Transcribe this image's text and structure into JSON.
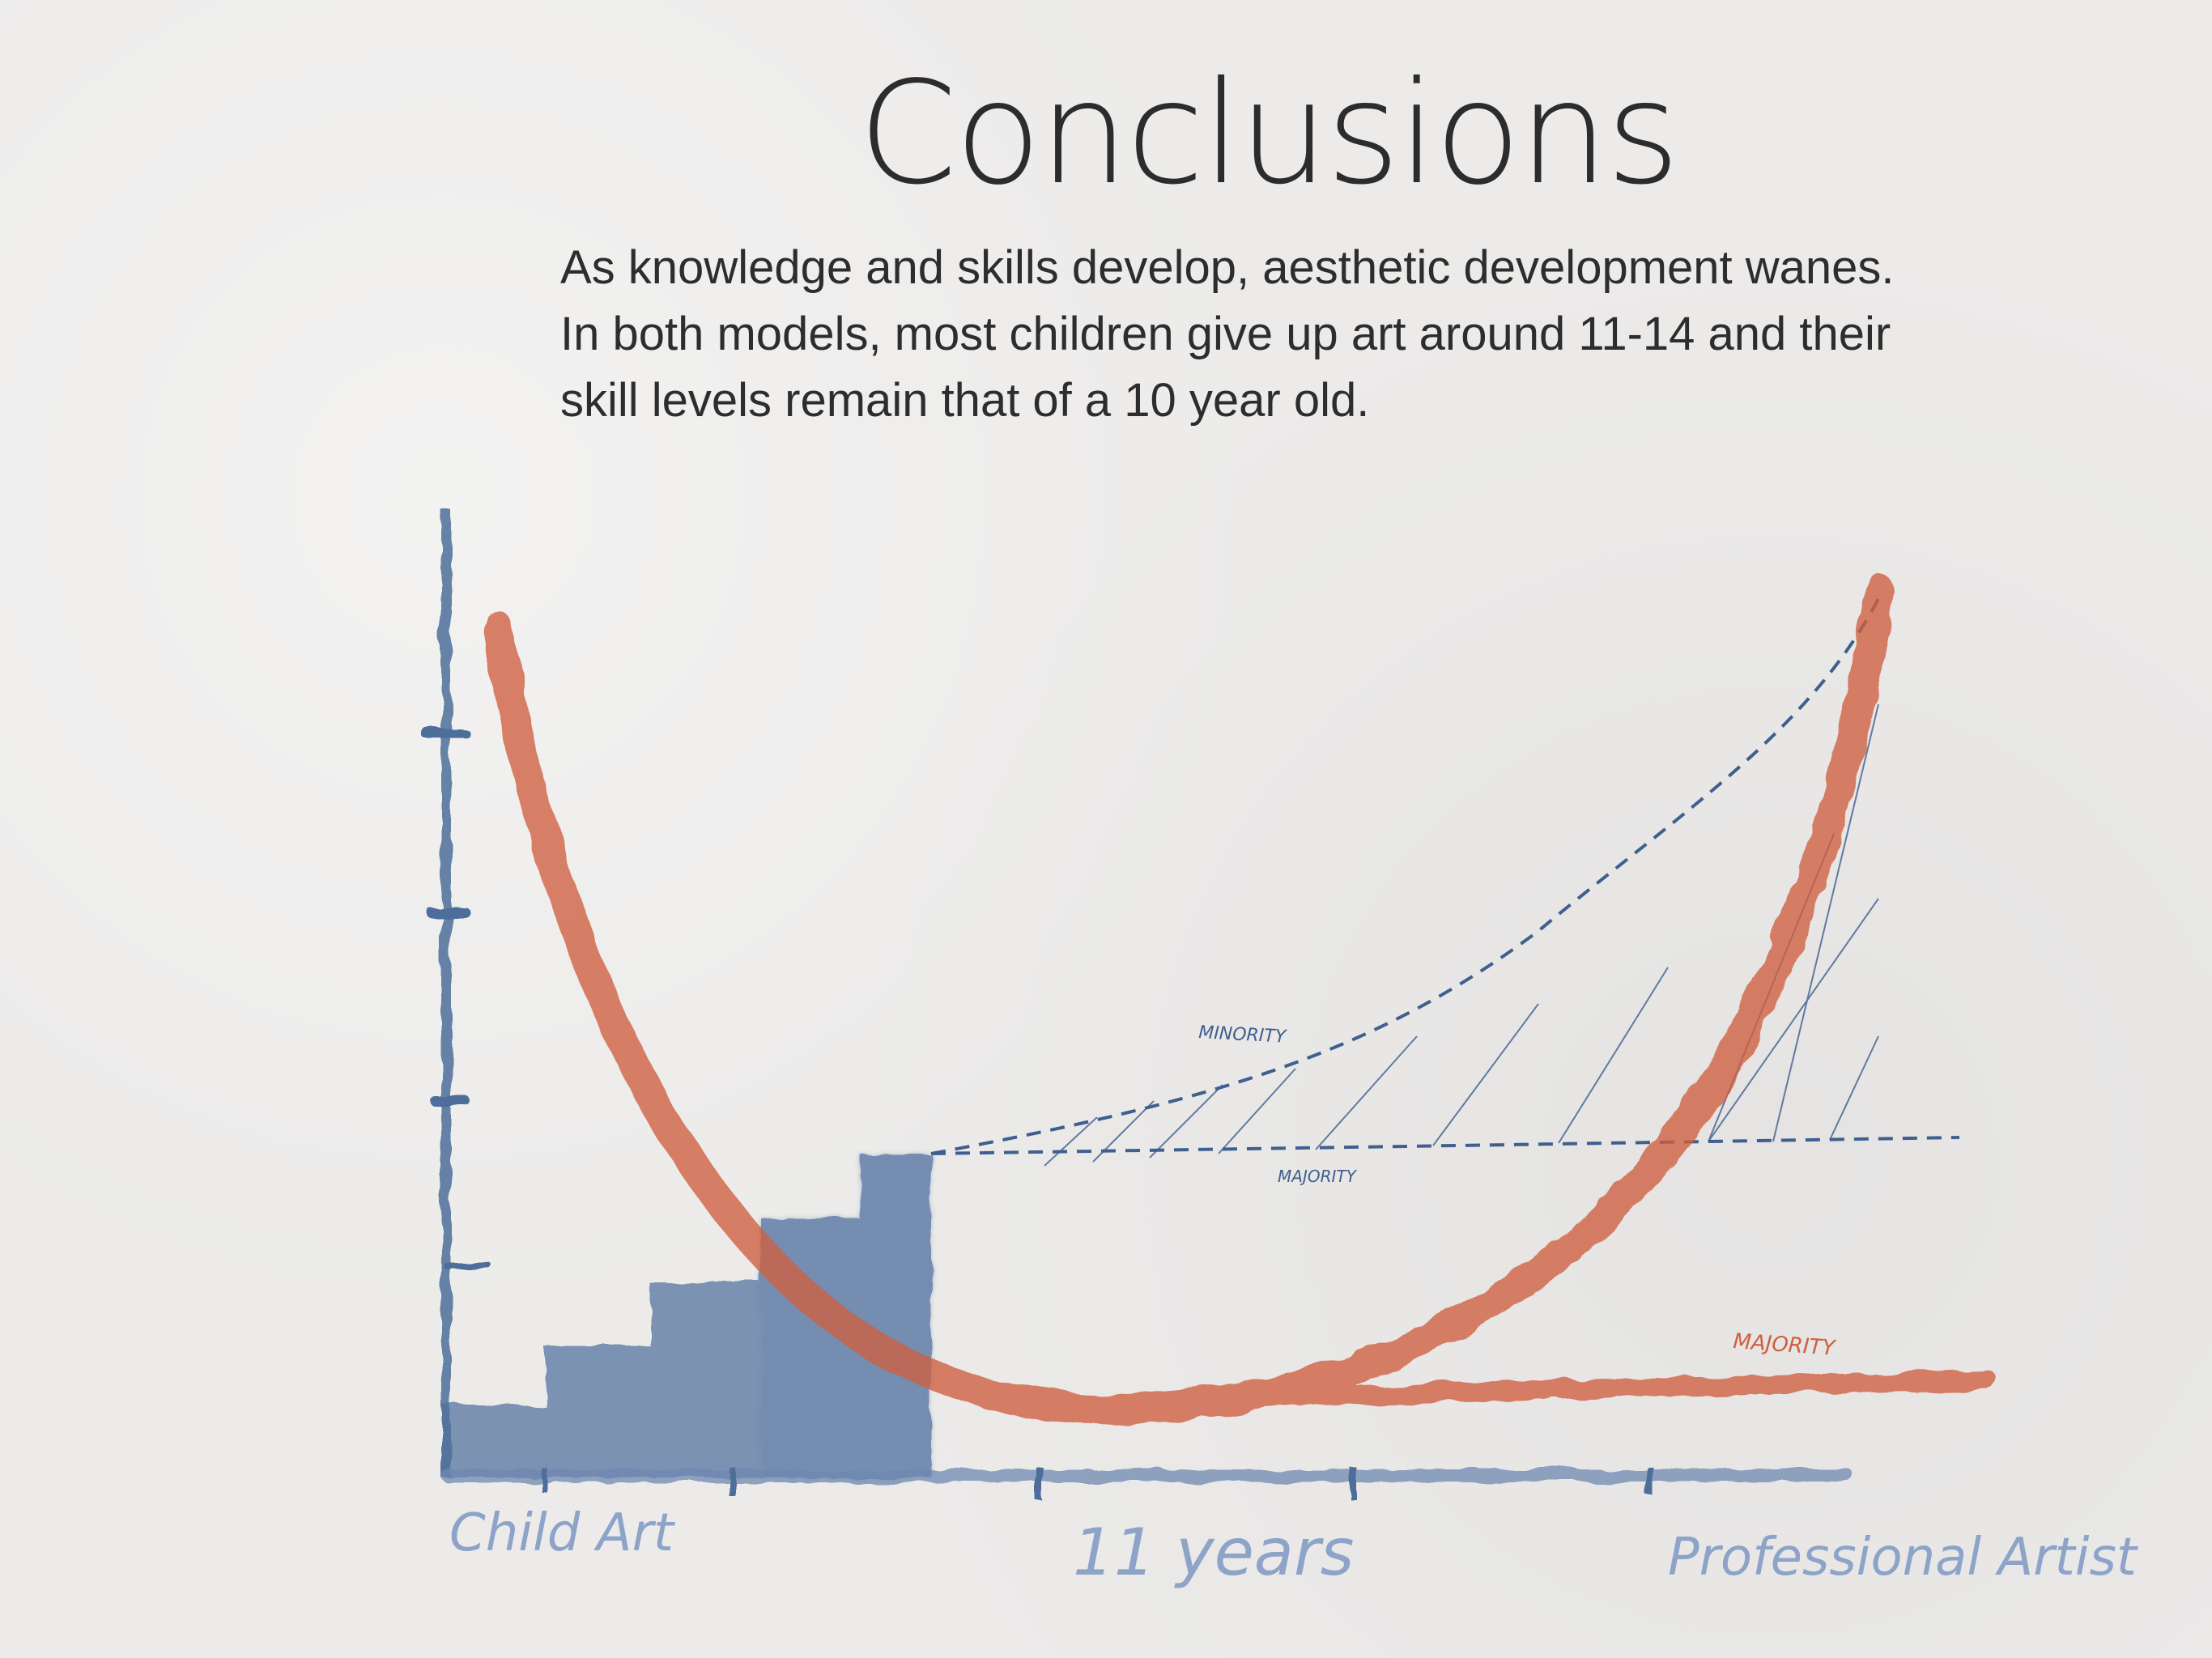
{
  "slide": {
    "title": "Conclusions",
    "body": "As knowledge and skills develop, aesthetic development wanes. In both models, most children give up art around 11-14 and their skill levels remain that of a 10 year old."
  },
  "diagram": {
    "x_labels": {
      "start": "Child Art",
      "middle": "11 years",
      "end": "Professional Artist"
    },
    "annotations": {
      "minority": "MINORITY",
      "majority_blue": "MAJORITY",
      "majority_orange": "MAJORITY"
    },
    "colors": {
      "axis": "#4e6e9a",
      "steps_fill": "#5b78a4",
      "dashed": "#3f5f8e",
      "orange_curve": "#cf5f3f",
      "x_label": "#8da3c8",
      "title": "#2c2c2c"
    }
  }
}
